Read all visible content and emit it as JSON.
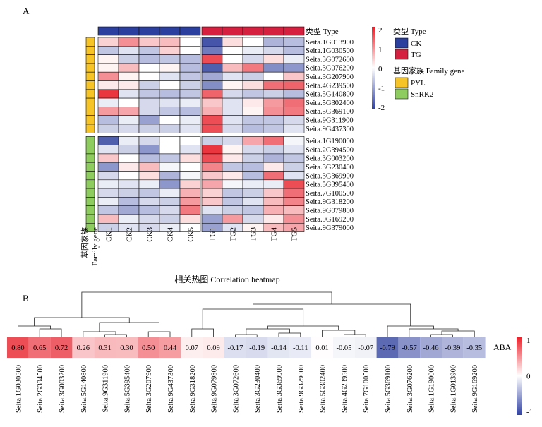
{
  "panel_a_label": "A",
  "panel_b_label": "B",
  "colors": {
    "ck": "#2b3f9e",
    "tg": "#d6203f",
    "pyl": "#f6c426",
    "snrk2": "#8fcc5f",
    "neg": "#3142a0",
    "mid": "#ffffff",
    "pos": "#e8202a"
  },
  "chart_data": [
    {
      "type": "heatmap",
      "title": "",
      "columns": [
        "CK1",
        "CK2",
        "CK3",
        "CK4",
        "CK5",
        "TG1",
        "TG2",
        "TG3",
        "TG4",
        "TG5"
      ],
      "column_type": [
        "CK",
        "CK",
        "CK",
        "CK",
        "CK",
        "TG",
        "TG",
        "TG",
        "TG",
        "TG"
      ],
      "rows": [
        "Seita.1G013900",
        "Seita.1G030500",
        "Seita.3G072600",
        "Seita.3G076200",
        "Seita.3G207900",
        "Seita.4G239500",
        "Seita.5G140800",
        "Seita.5G302400",
        "Seita.5G369100",
        "Seita.9G311900",
        "Seita.9G437300",
        "Seita.1G190000",
        "Seita.2G394500",
        "Seita.3G003200",
        "Seita.3G230400",
        "Seita.3G369900",
        "Seita.5G395400",
        "Seita.7G100500",
        "Seita.9G318200",
        "Seita.9G079800",
        "Seita.9G169200",
        "Seita.9G379000"
      ],
      "row_family": [
        "PYL",
        "PYL",
        "PYL",
        "PYL",
        "PYL",
        "PYL",
        "PYL",
        "PYL",
        "PYL",
        "PYL",
        "PYL",
        "SnRK2",
        "SnRK2",
        "SnRK2",
        "SnRK2",
        "SnRK2",
        "SnRK2",
        "SnRK2",
        "SnRK2",
        "SnRK2",
        "SnRK2",
        "SnRK2"
      ],
      "values": [
        [
          0.4,
          1.0,
          0.5,
          0.6,
          0.0,
          -1.8,
          0.3,
          0.0,
          -0.8,
          -0.7
        ],
        [
          -0.6,
          -0.3,
          -0.6,
          0.4,
          0.0,
          -1.4,
          0.0,
          -0.2,
          -0.4,
          -0.7
        ],
        [
          0.1,
          -0.5,
          -0.7,
          -0.6,
          -0.7,
          1.6,
          0.0,
          -0.4,
          0.3,
          -0.2
        ],
        [
          0.1,
          0.6,
          0.0,
          0.1,
          -0.7,
          -1.7,
          0.6,
          1.2,
          -1.2,
          -1.1
        ],
        [
          1.0,
          0.1,
          0.0,
          -0.3,
          -0.6,
          -0.9,
          -0.3,
          -0.5,
          0.0,
          0.5
        ],
        [
          0.2,
          0.2,
          -0.5,
          0.0,
          -0.5,
          -1.2,
          0.1,
          0.3,
          1.3,
          1.4
        ],
        [
          1.8,
          -0.3,
          -0.6,
          -0.7,
          -0.6,
          1.4,
          -0.4,
          -0.6,
          -0.5,
          -0.7
        ],
        [
          -0.2,
          0.0,
          -0.4,
          -0.3,
          -0.2,
          0.5,
          -0.3,
          0.2,
          0.9,
          1.3
        ],
        [
          0.9,
          0.8,
          -0.4,
          -0.6,
          -0.7,
          0.7,
          -0.3,
          0.1,
          1.0,
          1.2
        ],
        [
          -0.7,
          -0.2,
          -1.0,
          0.0,
          -0.2,
          1.6,
          -0.3,
          -0.6,
          -0.6,
          -0.4
        ],
        [
          -0.5,
          -0.4,
          -0.5,
          -0.5,
          -0.3,
          1.6,
          -0.4,
          -0.7,
          -0.6,
          -0.3
        ],
        [
          -1.7,
          -0.2,
          -0.4,
          0.0,
          0.0,
          -0.5,
          -0.4,
          0.8,
          1.3,
          -0.1
        ],
        [
          -0.3,
          -0.5,
          -1.1,
          0.0,
          -0.3,
          1.8,
          0.1,
          -0.4,
          -0.5,
          -0.3
        ],
        [
          0.5,
          0.0,
          -0.7,
          -0.6,
          0.3,
          1.6,
          0.2,
          -0.5,
          -0.8,
          -0.6
        ],
        [
          -1.1,
          0.2,
          0.6,
          -0.1,
          0.0,
          1.1,
          -0.6,
          -0.7,
          0.2,
          -0.5
        ],
        [
          -0.4,
          0.0,
          0.3,
          -0.8,
          -0.1,
          0.5,
          0.2,
          -0.7,
          1.3,
          -0.3
        ],
        [
          -0.2,
          -0.3,
          -0.2,
          -1.1,
          0.4,
          0.8,
          -0.1,
          -0.2,
          -0.2,
          1.6
        ],
        [
          -0.4,
          -0.5,
          -0.6,
          -0.2,
          0.7,
          0.4,
          -0.6,
          -0.5,
          0.5,
          1.3
        ],
        [
          -0.2,
          -0.7,
          -0.4,
          -0.5,
          0.9,
          0.5,
          -0.6,
          -0.3,
          0.6,
          1.1
        ],
        [
          -0.6,
          -0.9,
          -0.7,
          -0.4,
          1.2,
          -0.3,
          -0.5,
          -0.6,
          0.7,
          0.6
        ],
        [
          0.6,
          -0.2,
          -0.4,
          -0.5,
          0.3,
          -1.0,
          0.9,
          -0.4,
          0.2,
          1.0
        ],
        [
          -0.5,
          -0.3,
          -0.4,
          -0.2,
          0.0,
          -1.0,
          -0.3,
          0.1,
          0.6,
          0.8
        ]
      ],
      "scale_ticks": [
        "2",
        "1",
        "0",
        "-1",
        "-2"
      ],
      "vmin": -2,
      "vmax": 2,
      "type_bar_label": "类型 Type",
      "legend_type_title": "类型 Type",
      "legend_type_items": [
        "CK",
        "TG"
      ],
      "legend_family_title": "基因家族 Family gene",
      "legend_family_items": [
        "PYL",
        "SnRK2"
      ],
      "family_axis_label_zh": "基因家族",
      "family_axis_label_en": "Family gene"
    },
    {
      "type": "heatmap",
      "title": "相关热图 Correlation heatmap",
      "genes": [
        "Seita.1G030500",
        "Seita.2G394500",
        "Seita.3G003200",
        "Seita.5G140800",
        "Seita.9G311900",
        "Seita.5G395400",
        "Seita.3G207900",
        "Seita.9G437300",
        "Seita.9G318200",
        "Seita.9G079800",
        "Seita.3G072600",
        "Seita.3G230400",
        "Seita.3G369900",
        "Seita.9G379000",
        "Seita.5G302400",
        "Seita.4G239500",
        "Seita.7G100500",
        "Seita.5G369100",
        "Seita.3G076200",
        "Seita.1G190000",
        "Seita.1G013900",
        "Seita.9G169200"
      ],
      "values": [
        0.8,
        0.65,
        0.72,
        0.26,
        0.31,
        0.3,
        0.5,
        0.44,
        0.07,
        0.09,
        -0.17,
        -0.19,
        -0.14,
        -0.11,
        0.01,
        -0.05,
        -0.07,
        -0.79,
        -0.57,
        -0.46,
        -0.39,
        -0.35
      ],
      "labels": [
        "0.80",
        "0.65",
        "0.72",
        "0.26",
        "0.31",
        "0.30",
        "0.50",
        "0.44",
        "0.07",
        "0.09",
        "-0.17",
        "-0.19",
        "-0.14",
        "-0.11",
        "0.01",
        "-0.05",
        "-0.07",
        "-0.79",
        "-0.57",
        "-0.46",
        "-0.39",
        "-0.35"
      ],
      "row_label": "ABA",
      "scale_ticks": [
        "1",
        "0",
        "-1"
      ],
      "vmin": -1,
      "vmax": 1
    }
  ]
}
